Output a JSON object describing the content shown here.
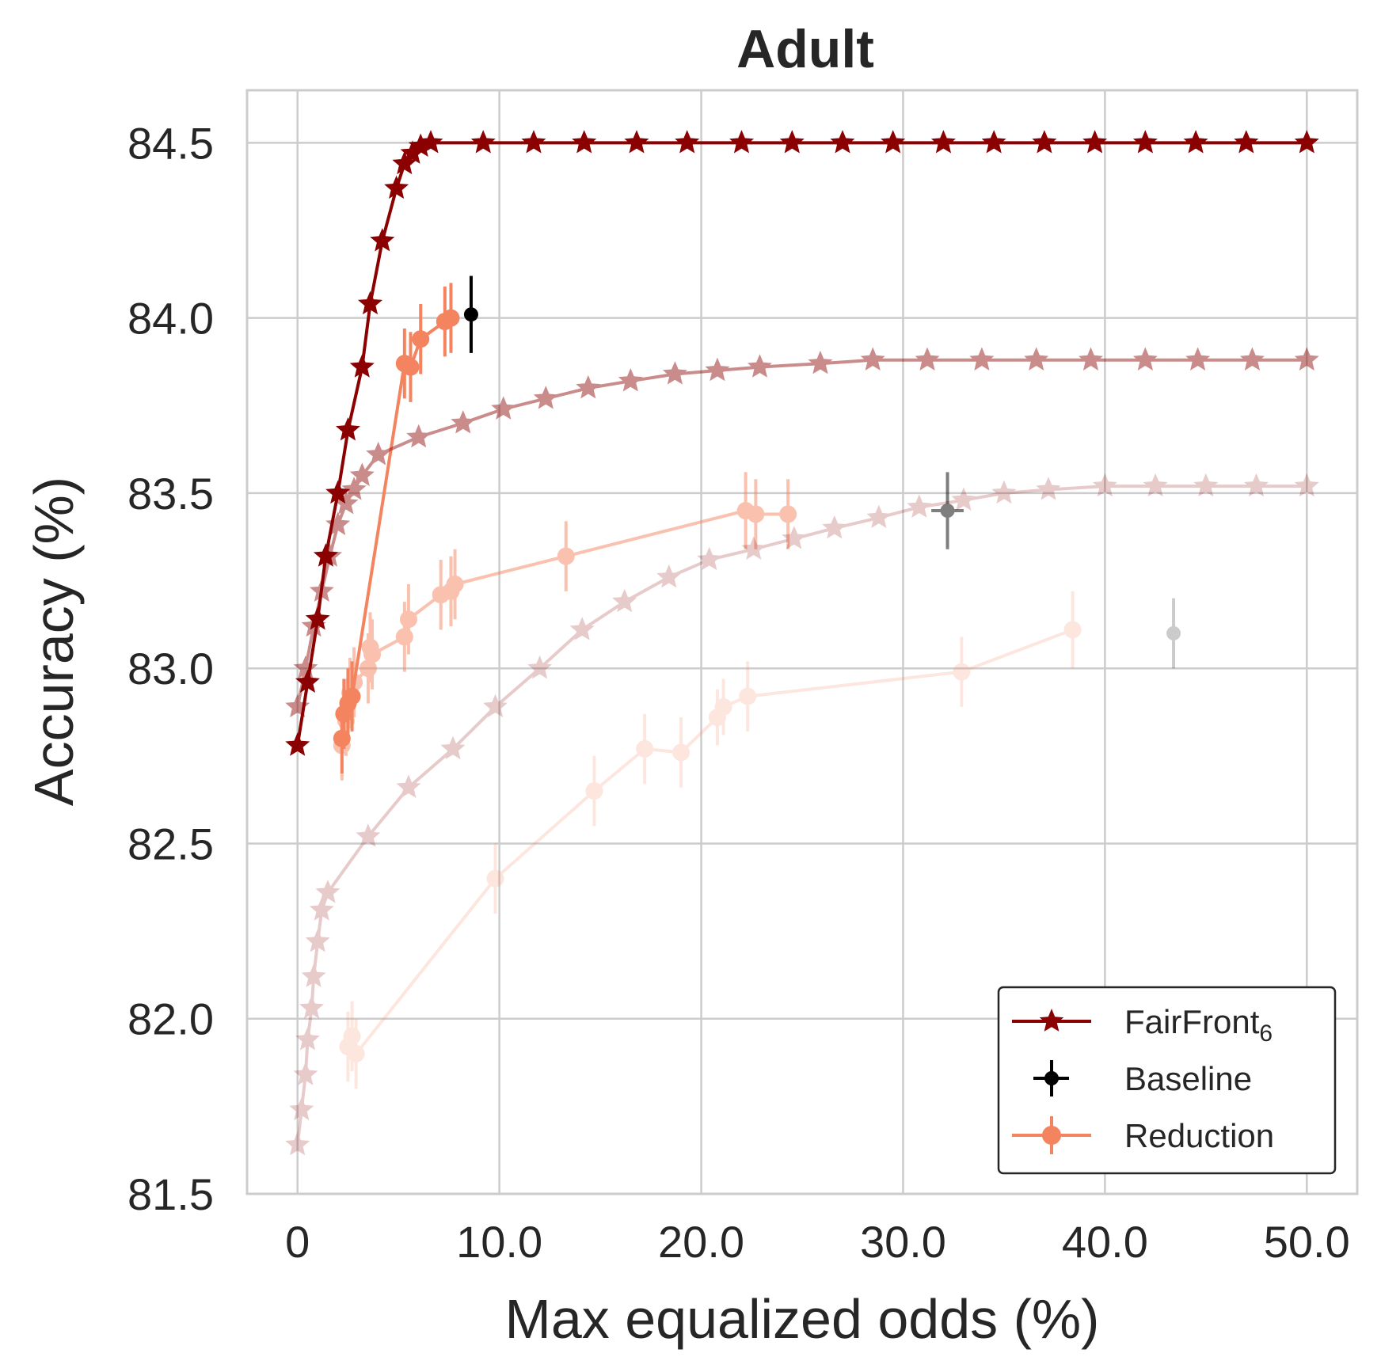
{
  "chart_data": {
    "type": "line",
    "title": "Adult",
    "xlabel": "Max equalized odds (%)",
    "ylabel": "Accuracy (%)",
    "xlim": [
      -2.5,
      52.5
    ],
    "ylim": [
      81.5,
      84.65
    ],
    "xticks": [
      0,
      10,
      20,
      30,
      40,
      50
    ],
    "xtick_labels": [
      "0",
      "10.0",
      "20.0",
      "30.0",
      "40.0",
      "50.0"
    ],
    "yticks": [
      81.5,
      82.0,
      82.5,
      83.0,
      83.5,
      84.0,
      84.5
    ],
    "ytick_labels": [
      "81.5",
      "82.0",
      "82.5",
      "83.0",
      "83.5",
      "84.0",
      "84.5"
    ],
    "grid": true,
    "legend_position": "lower-right",
    "legend": [
      {
        "label": "FairFront",
        "subscript": "6",
        "marker": "star",
        "color": "#8b0000"
      },
      {
        "label": "Baseline",
        "marker": "errorbar",
        "color": "#000000"
      },
      {
        "label": "Reduction",
        "marker": "circle",
        "color": "#f4845f"
      }
    ],
    "fairfront": [
      {
        "opacity": 1.0,
        "x": [
          0,
          0.5,
          1.0,
          1.4,
          2.0,
          2.5,
          3.2,
          3.6,
          4.2,
          4.9,
          5.3,
          5.7,
          6.1,
          6.6,
          9.2,
          11.7,
          14.2,
          16.8,
          19.3,
          22.0,
          24.5,
          27.0,
          29.5,
          32.0,
          34.5,
          37.0,
          39.5,
          42.0,
          44.5,
          47.0,
          50.0
        ],
        "y": [
          82.78,
          82.96,
          83.14,
          83.32,
          83.5,
          83.68,
          83.86,
          84.04,
          84.22,
          84.37,
          84.44,
          84.47,
          84.49,
          84.5,
          84.5,
          84.5,
          84.5,
          84.5,
          84.5,
          84.5,
          84.5,
          84.5,
          84.5,
          84.5,
          84.5,
          84.5,
          84.5,
          84.5,
          84.5,
          84.5,
          84.5
        ]
      },
      {
        "opacity": 0.45,
        "x": [
          0,
          0.4,
          0.8,
          1.2,
          1.6,
          2.0,
          2.4,
          2.8,
          3.2,
          4.0,
          6.0,
          8.2,
          10.2,
          12.3,
          14.4,
          16.5,
          18.7,
          20.8,
          22.9,
          25.9,
          28.5,
          31.2,
          33.9,
          36.6,
          39.3,
          42.0,
          44.6,
          47.3,
          50.0
        ],
        "y": [
          82.89,
          83.0,
          83.12,
          83.22,
          83.32,
          83.41,
          83.47,
          83.51,
          83.55,
          83.61,
          83.66,
          83.7,
          83.74,
          83.77,
          83.8,
          83.82,
          83.84,
          83.85,
          83.86,
          83.87,
          83.88,
          83.88,
          83.88,
          83.88,
          83.88,
          83.88,
          83.88,
          83.88,
          83.88
        ]
      },
      {
        "opacity": 0.2,
        "x": [
          0,
          0.2,
          0.4,
          0.5,
          0.7,
          0.8,
          1.0,
          1.2,
          1.5,
          3.5,
          5.5,
          7.7,
          9.8,
          12.0,
          14.1,
          16.2,
          18.4,
          20.4,
          22.6,
          24.6,
          26.6,
          28.8,
          30.8,
          33.0,
          35.0,
          37.2,
          40.0,
          42.5,
          45.0,
          47.5,
          50.0
        ],
        "y": [
          81.64,
          81.74,
          81.84,
          81.94,
          82.03,
          82.12,
          82.22,
          82.31,
          82.36,
          82.52,
          82.66,
          82.77,
          82.89,
          83.0,
          83.11,
          83.19,
          83.26,
          83.31,
          83.34,
          83.37,
          83.4,
          83.43,
          83.46,
          83.48,
          83.5,
          83.51,
          83.52,
          83.52,
          83.52,
          83.52,
          83.52
        ]
      }
    ],
    "baseline": [
      {
        "x": 8.6,
        "y": 84.01,
        "yerr": 0.11,
        "xerr": 0.0,
        "opacity": 1.0
      },
      {
        "x": 32.2,
        "y": 83.45,
        "yerr": 0.11,
        "xerr": 0.8,
        "opacity": 0.5
      },
      {
        "x": 43.4,
        "y": 83.1,
        "yerr": 0.1,
        "xerr": 0.2,
        "opacity": 0.2
      }
    ],
    "reduction": [
      {
        "opacity": 1.0,
        "points": [
          {
            "x": 2.2,
            "y": 82.8,
            "yerr": 0.1
          },
          {
            "x": 2.3,
            "y": 82.87,
            "yerr": 0.1
          },
          {
            "x": 2.5,
            "y": 82.9,
            "yerr": 0.1
          },
          {
            "x": 2.7,
            "y": 82.92,
            "yerr": 0.1
          },
          {
            "x": 5.3,
            "y": 83.87,
            "yerr": 0.1
          },
          {
            "x": 5.6,
            "y": 83.86,
            "yerr": 0.1
          },
          {
            "x": 6.1,
            "y": 83.94,
            "yerr": 0.1
          },
          {
            "x": 7.3,
            "y": 83.99,
            "yerr": 0.1
          },
          {
            "x": 7.6,
            "y": 84.0,
            "yerr": 0.1
          }
        ]
      },
      {
        "opacity": 0.5,
        "points": [
          {
            "x": 2.2,
            "y": 82.78,
            "yerr": 0.1
          },
          {
            "x": 2.4,
            "y": 82.85,
            "yerr": 0.1
          },
          {
            "x": 2.6,
            "y": 82.93,
            "yerr": 0.1
          },
          {
            "x": 2.8,
            "y": 82.96,
            "yerr": 0.1
          },
          {
            "x": 3.5,
            "y": 83.0,
            "yerr": 0.1
          },
          {
            "x": 3.6,
            "y": 83.06,
            "yerr": 0.1
          },
          {
            "x": 3.7,
            "y": 83.04,
            "yerr": 0.1
          },
          {
            "x": 5.3,
            "y": 83.09,
            "yerr": 0.1
          },
          {
            "x": 5.5,
            "y": 83.14,
            "yerr": 0.1
          },
          {
            "x": 7.1,
            "y": 83.21,
            "yerr": 0.1
          },
          {
            "x": 7.6,
            "y": 83.22,
            "yerr": 0.1
          },
          {
            "x": 7.8,
            "y": 83.24,
            "yerr": 0.1
          },
          {
            "x": 13.3,
            "y": 83.32,
            "yerr": 0.1
          },
          {
            "x": 22.2,
            "y": 83.45,
            "yerr": 0.11
          },
          {
            "x": 22.7,
            "y": 83.44,
            "yerr": 0.1
          },
          {
            "x": 24.3,
            "y": 83.44,
            "yerr": 0.1
          }
        ]
      },
      {
        "opacity": 0.2,
        "points": [
          {
            "x": 2.5,
            "y": 81.92,
            "yerr": 0.1
          },
          {
            "x": 2.7,
            "y": 81.95,
            "yerr": 0.1
          },
          {
            "x": 2.9,
            "y": 81.9,
            "yerr": 0.1
          },
          {
            "x": 9.8,
            "y": 82.4,
            "yerr": 0.1
          },
          {
            "x": 14.7,
            "y": 82.65,
            "yerr": 0.1
          },
          {
            "x": 17.2,
            "y": 82.77,
            "yerr": 0.1
          },
          {
            "x": 19.0,
            "y": 82.76,
            "yerr": 0.1
          },
          {
            "x": 20.8,
            "y": 82.86,
            "yerr": 0.08
          },
          {
            "x": 21.1,
            "y": 82.89,
            "yerr": 0.08
          },
          {
            "x": 22.3,
            "y": 82.92,
            "yerr": 0.1
          },
          {
            "x": 32.9,
            "y": 82.99,
            "yerr": 0.1
          },
          {
            "x": 38.4,
            "y": 83.11,
            "yerr": 0.11
          }
        ]
      }
    ]
  }
}
